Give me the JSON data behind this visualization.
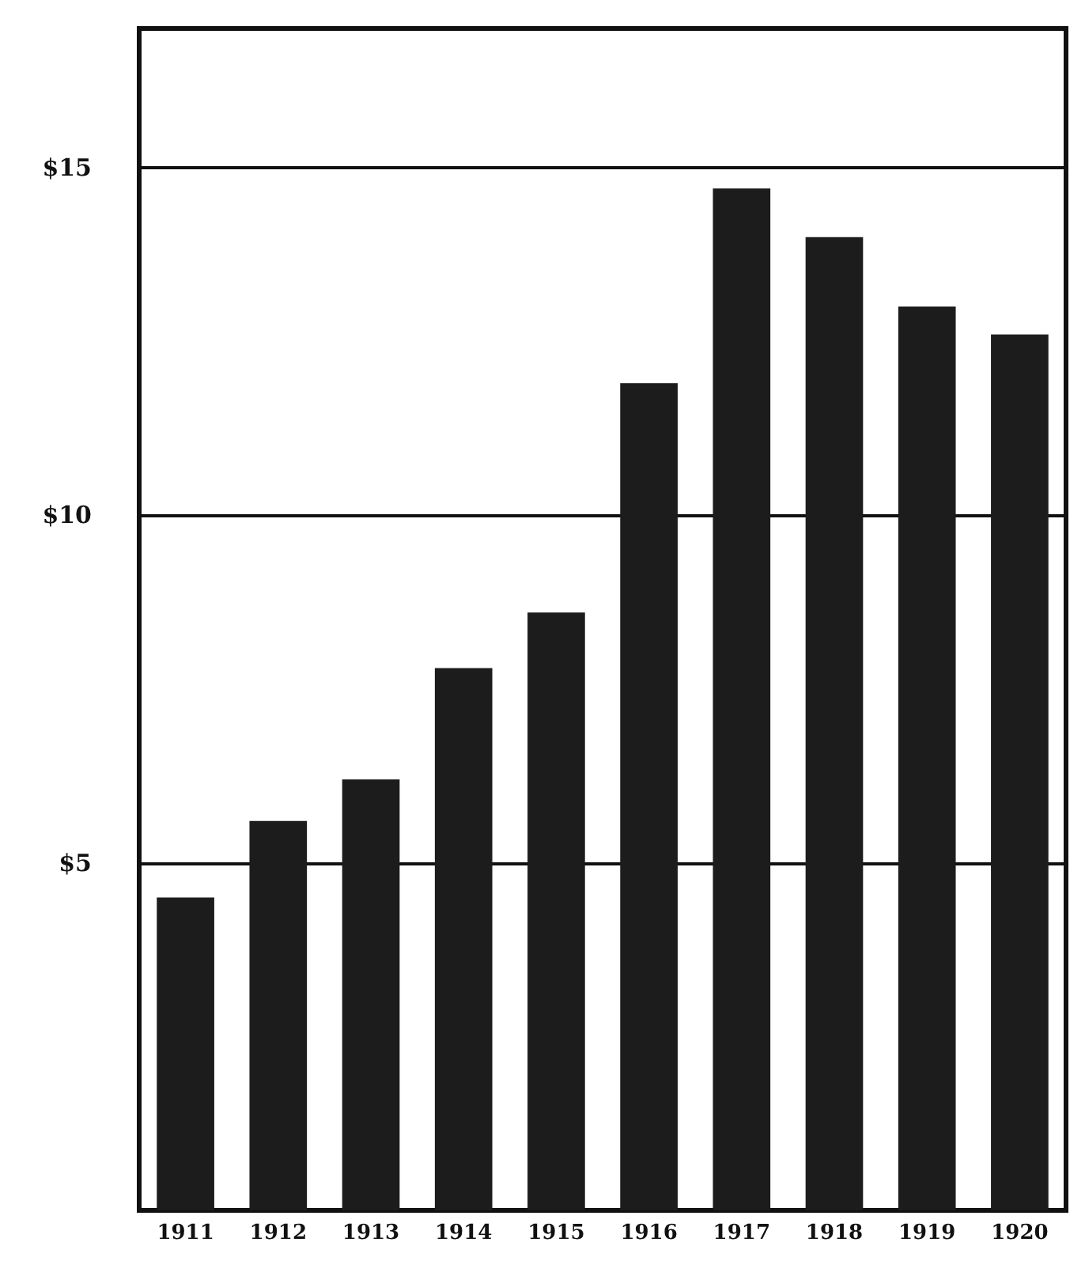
{
  "chart_data": {
    "type": "bar",
    "categories": [
      "1911",
      "1912",
      "1913",
      "1914",
      "1915",
      "1916",
      "1917",
      "1918",
      "1919",
      "1920"
    ],
    "values": [
      4.5,
      5.6,
      6.2,
      7.8,
      8.6,
      11.9,
      14.7,
      14.0,
      13.0,
      12.6
    ],
    "color": "#1c1c1c",
    "ylim": [
      0,
      17
    ],
    "yticks": [
      {
        "value": 5,
        "label": "$5"
      },
      {
        "value": 10,
        "label": "$10"
      },
      {
        "value": 15,
        "label": "$15"
      }
    ],
    "grid": "y"
  }
}
